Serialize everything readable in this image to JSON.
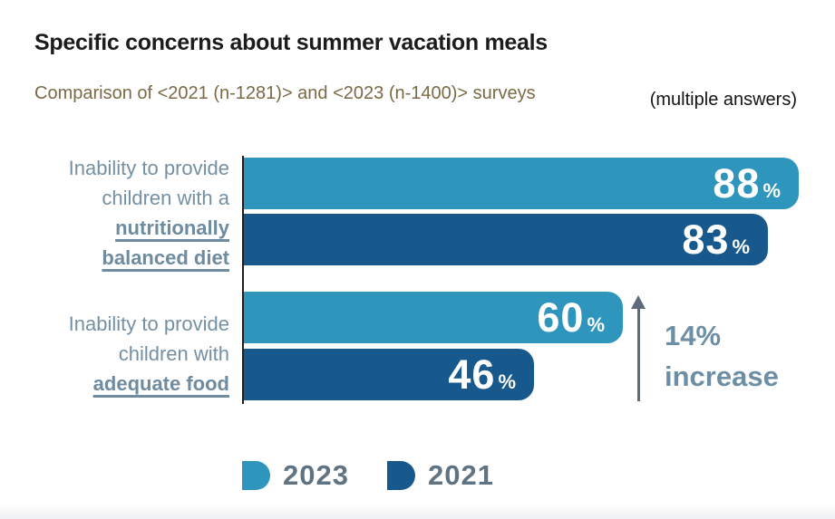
{
  "header": {
    "title": "Specific concerns about summer vacation meals",
    "subtitle": "Comparison of <2021 (n-1281)> and <2023 (n-1400)> surveys",
    "note": "(multiple answers)"
  },
  "chart_data": {
    "type": "bar",
    "orientation": "horizontal",
    "unit": "%",
    "categories": [
      "Inability to provide children with a nutritionally balanced diet",
      "Inability to provide children with adequate food"
    ],
    "series": [
      {
        "name": "2023",
        "color": "#2E95BD",
        "values": [
          88,
          60
        ]
      },
      {
        "name": "2021",
        "color": "#17598C",
        "values": [
          83,
          46
        ]
      }
    ],
    "xlim": [
      0,
      92
    ],
    "grid": false,
    "legend_position": "bottom",
    "annotation": {
      "line1": "14%",
      "line2": "increase",
      "refers_to": "adequate food: 46% in 2021 to 60% in 2023"
    }
  },
  "category_labels": {
    "cat1": {
      "plain": [
        "Inability to provide",
        "children with a"
      ],
      "emphasis": [
        "nutritionally",
        "balanced diet"
      ]
    },
    "cat2": {
      "plain": [
        "Inability to provide",
        "children with"
      ],
      "emphasis": [
        "adequate food"
      ]
    }
  },
  "legend": [
    {
      "label": "2023",
      "color": "#2E95BD"
    },
    {
      "label": "2021",
      "color": "#17598C"
    }
  ],
  "colors": {
    "bar_2023": "#2E95BD",
    "bar_2021": "#17598C",
    "category_text": "#7590A3",
    "emphasis_text": "#6E8BA0",
    "legend_text": "#5F7383",
    "annotation_text": "#6D8FA5",
    "arrow": "#5D6B7A",
    "subtitle_text": "#7A6A45",
    "title_text": "#1C1C1C",
    "axis_line": "#1F1F1F",
    "value_text": "#FFFFFF"
  }
}
